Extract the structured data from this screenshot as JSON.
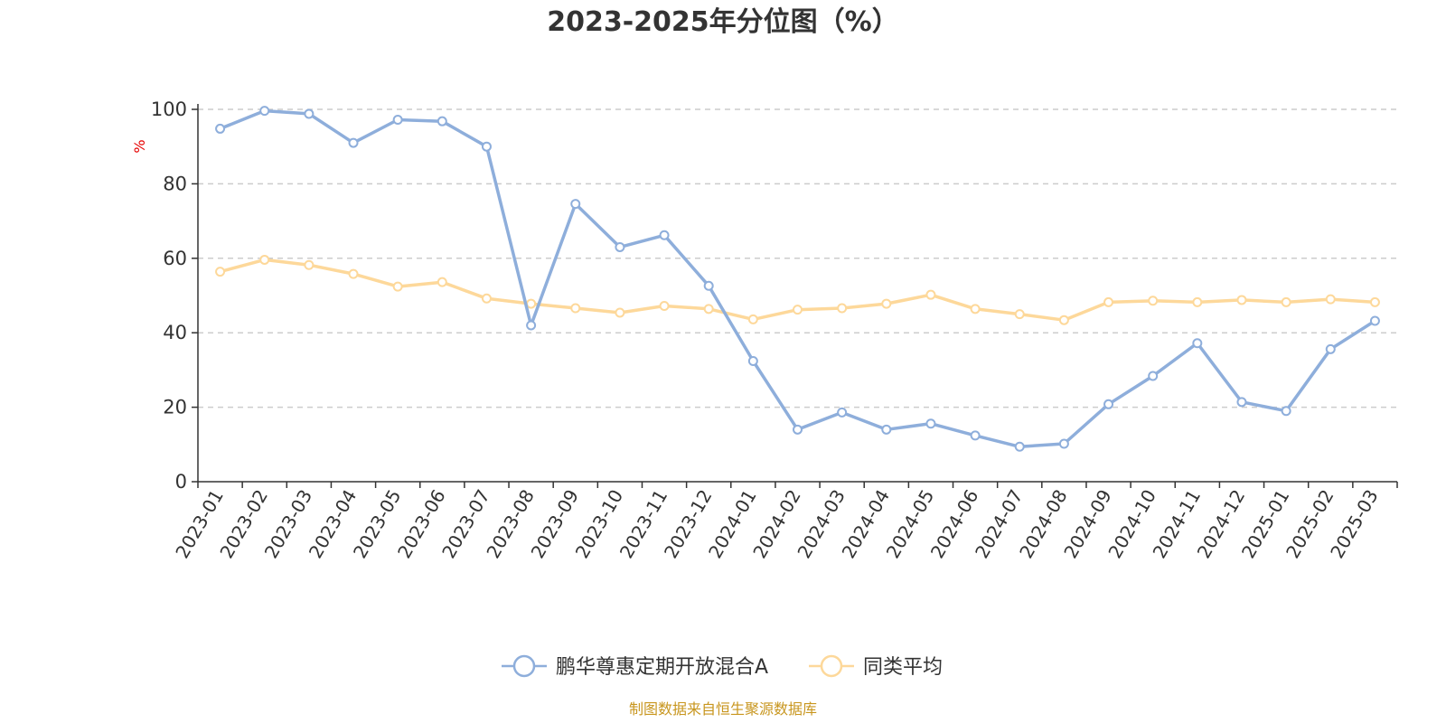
{
  "chart_data": {
    "type": "line",
    "title": "2023-2025年分位图（%）",
    "ylabel": "%",
    "xlabel": "",
    "ylim": [
      0,
      100
    ],
    "yticks": [
      0,
      20,
      40,
      60,
      80,
      100
    ],
    "grid": true,
    "legend_position": "bottom",
    "categories": [
      "2023-01",
      "2023-02",
      "2023-03",
      "2023-04",
      "2023-05",
      "2023-06",
      "2023-07",
      "2023-08",
      "2023-09",
      "2023-10",
      "2023-11",
      "2023-12",
      "2024-01",
      "2024-02",
      "2024-03",
      "2024-04",
      "2024-05",
      "2024-06",
      "2024-07",
      "2024-08",
      "2024-09",
      "2024-10",
      "2024-11",
      "2024-12",
      "2025-01",
      "2025-02",
      "2025-03"
    ],
    "series": [
      {
        "name": "鹏华尊惠定期开放混合A",
        "color": "#8eaedb",
        "values": [
          94.8,
          99.6,
          98.8,
          91.0,
          97.2,
          96.8,
          90.0,
          42.0,
          74.6,
          63.0,
          66.2,
          52.6,
          32.4,
          14.0,
          18.6,
          14.0,
          15.6,
          12.4,
          9.4,
          10.2,
          20.8,
          28.4,
          37.2,
          21.4,
          19.0,
          35.6,
          43.2
        ]
      },
      {
        "name": "同类平均",
        "color": "#fdd89a",
        "values": [
          56.4,
          59.6,
          58.2,
          55.8,
          52.4,
          53.6,
          49.2,
          47.8,
          46.6,
          45.4,
          47.2,
          46.4,
          43.6,
          46.2,
          46.6,
          47.8,
          50.2,
          46.4,
          45.0,
          43.4,
          48.2,
          48.6,
          48.2,
          48.8,
          48.2,
          49.0,
          48.2
        ]
      }
    ]
  },
  "footer": {
    "source": "制图数据来自恒生聚源数据库"
  }
}
